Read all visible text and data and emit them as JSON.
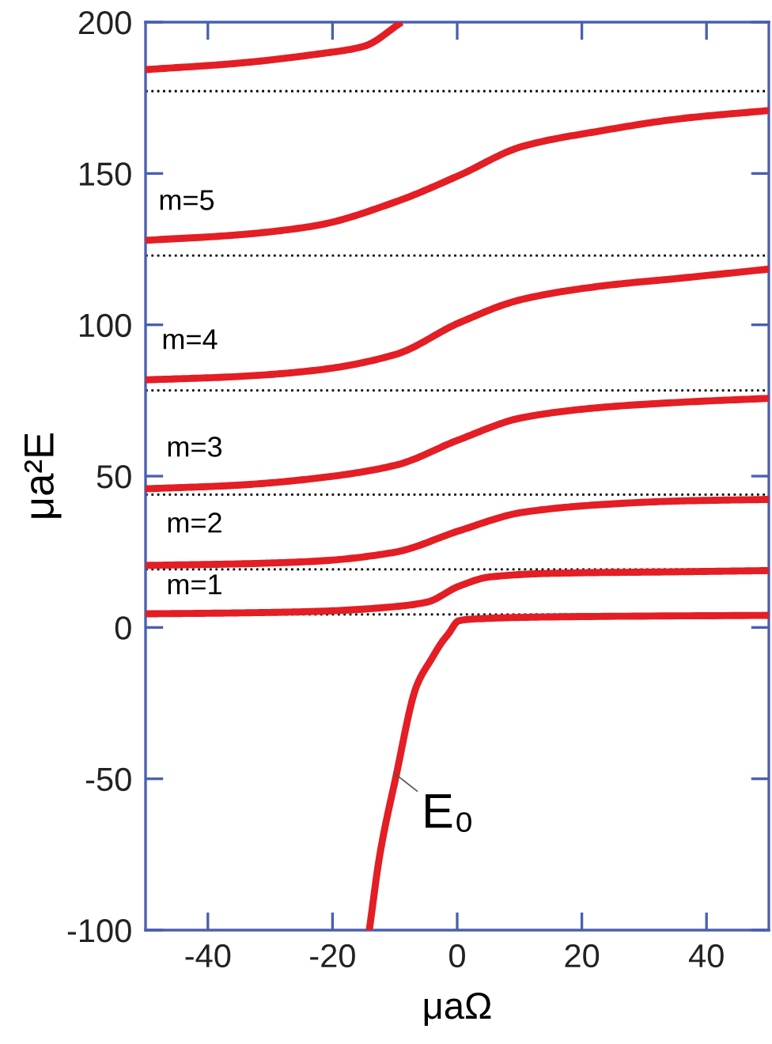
{
  "chart_data": {
    "type": "line",
    "xlabel": "μaΩ",
    "ylabel": "μa²E",
    "xlim": [
      -50,
      50
    ],
    "ylim": [
      -100,
      200
    ],
    "xticks": [
      -40,
      -20,
      0,
      20,
      40
    ],
    "yticks": [
      -100,
      -50,
      0,
      50,
      100,
      150,
      200
    ],
    "grid": false,
    "legend": false,
    "marker": "none",
    "line_style": "solid",
    "series": [
      {
        "color": "#e31e24",
        "x": [
          -50,
          -35.3,
          -22.6,
          -15,
          -8.9
        ],
        "values": [
          184.3,
          186.4,
          189.4,
          192,
          200
        ]
      },
      {
        "color": "#e31e24",
        "x": [
          -50,
          -35.3,
          -22.6,
          -9.9,
          0.25,
          10.4,
          23.1,
          35.8,
          50
        ],
        "values": [
          127.9,
          129.7,
          132.8,
          140.6,
          149.3,
          158.9,
          164.1,
          168.1,
          170.8
        ]
      },
      {
        "color": "#e31e24",
        "x": [
          -50,
          -35.3,
          -22.6,
          -9.9,
          0.25,
          10.4,
          23.1,
          35.8,
          50
        ],
        "values": [
          81.8,
          82.9,
          85,
          90.2,
          100.6,
          108.4,
          112.8,
          115.4,
          118.4
        ]
      },
      {
        "color": "#e31e24",
        "x": [
          -50,
          -35.3,
          -22.6,
          -9.9,
          0.25,
          10.4,
          23.1,
          35.8,
          50
        ],
        "values": [
          45.8,
          47,
          49.3,
          53.6,
          62,
          69.3,
          72.7,
          74.4,
          75.7
        ]
      },
      {
        "color": "#e31e24",
        "x": [
          -50,
          -35.3,
          -22.6,
          -9.9,
          0.25,
          10.4,
          23.1,
          35.8,
          50
        ],
        "values": [
          20.5,
          21,
          21.9,
          24.9,
          31.9,
          38,
          40.6,
          41.8,
          42.3
        ]
      },
      {
        "color": "#e31e24",
        "x": [
          -50,
          -35.3,
          -22.6,
          -9.9,
          -4.8,
          0.25,
          5.3,
          15.5,
          35.8,
          50
        ],
        "values": [
          4.5,
          4.8,
          5.3,
          6.9,
          8.4,
          13.6,
          16.7,
          17.9,
          18.4,
          18.8
        ]
      },
      {
        "color": "#e31e24",
        "x": [
          -14.1,
          -12.4,
          -9.9,
          -6.5,
          -4,
          -2.5,
          -1.4,
          0.25,
          2.8,
          15.5,
          50
        ],
        "values": [
          -100,
          -75,
          -50,
          -19.3,
          -10,
          -5,
          -2.1,
          2.2,
          2.8,
          3.5,
          4
        ]
      }
    ],
    "ref_lines": [
      {
        "axis": "y",
        "value": 177.2,
        "color": "#000000",
        "line_style": "dotted"
      },
      {
        "axis": "y",
        "value": 122.9,
        "color": "#000000",
        "line_style": "dotted"
      },
      {
        "axis": "y",
        "value": 78.3,
        "color": "#000000",
        "line_style": "dotted"
      },
      {
        "axis": "y",
        "value": 43.9,
        "color": "#000000",
        "line_style": "dotted"
      },
      {
        "axis": "y",
        "value": 19.2,
        "color": "#000000",
        "line_style": "dotted"
      },
      {
        "axis": "y",
        "value": 4.3,
        "color": "#000000",
        "line_style": "dotted"
      }
    ],
    "annotations": [
      "m=5",
      "m=4",
      "m=3",
      "m=2",
      "m=1",
      {
        "text": "E₀",
        "x": -10.2,
        "y": -48
      }
    ]
  }
}
